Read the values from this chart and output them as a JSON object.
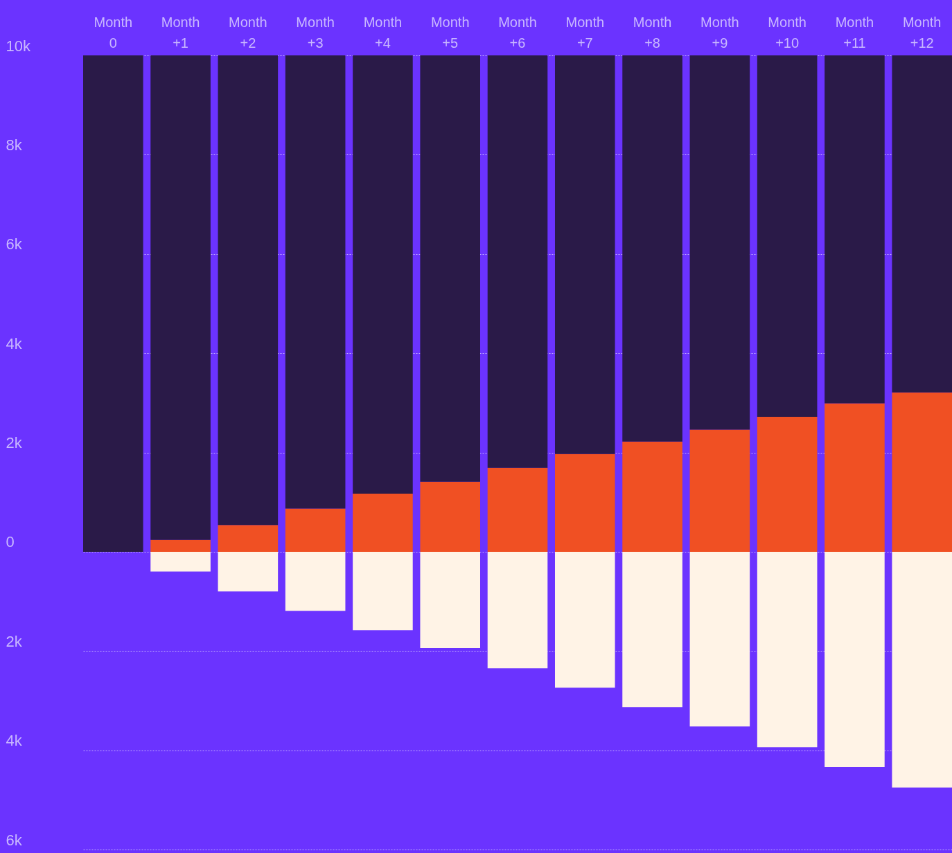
{
  "chart_data": {
    "type": "bar",
    "stacked": true,
    "categories": [
      "Month 0",
      "Month +1",
      "Month +2",
      "Month +3",
      "Month +4",
      "Month +5",
      "Month +6",
      "Month +7",
      "Month +8",
      "Month +9",
      "Month +10",
      "Month +11",
      "Month +12"
    ],
    "series": [
      {
        "color": "#f05023",
        "values": [
          null,
          240,
          540,
          870,
          1170,
          1410,
          1690,
          1970,
          2220,
          2460,
          2720,
          2990,
          3210
        ]
      },
      {
        "color": "#2a1a48",
        "values": [
          10000,
          9760,
          9460,
          9130,
          8830,
          8590,
          8310,
          8030,
          7780,
          7540,
          7280,
          7010,
          6790
        ]
      },
      {
        "color": "#fff3e6",
        "values": [
          null,
          -400,
          -800,
          -1190,
          -1580,
          -1940,
          -2350,
          -2740,
          -3130,
          -3520,
          -3940,
          -4340,
          -4750
        ]
      }
    ],
    "ylim": [
      -6000,
      10000
    ],
    "yticks": [
      {
        "value": 10000,
        "label": "10k"
      },
      {
        "value": 8000,
        "label": "8k"
      },
      {
        "value": 6000,
        "label": "6k"
      },
      {
        "value": 4000,
        "label": "4k"
      },
      {
        "value": 2000,
        "label": "2k"
      },
      0,
      {
        "value": -2000,
        "label": "2k"
      },
      {
        "value": -4000,
        "label": "4k"
      },
      {
        "value": -6000,
        "label": "6k"
      }
    ],
    "grid": "y"
  }
}
